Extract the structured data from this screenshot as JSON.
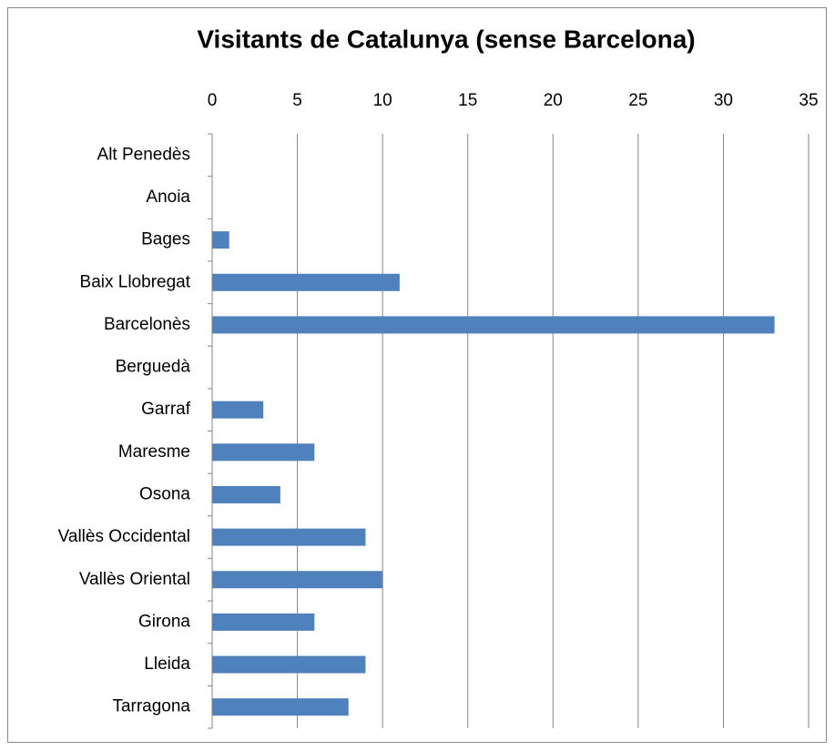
{
  "chart_data": {
    "type": "bar",
    "orientation": "horizontal",
    "title": "Visitants de Catalunya (sense Barcelona)",
    "categories": [
      "Alt Penedès",
      "Anoia",
      "Bages",
      "Baix Llobregat",
      "Barcelonès",
      "Berguedà",
      "Garraf",
      "Maresme",
      "Osona",
      "Vallès Occidental",
      "Vallès Oriental",
      "Girona",
      "Lleida",
      "Tarragona"
    ],
    "values": [
      0,
      0,
      1,
      11,
      33,
      0,
      3,
      6,
      4,
      9,
      10,
      6,
      9,
      8
    ],
    "color": "#4f81bd",
    "xlim": [
      0,
      35
    ],
    "xticks": [
      0,
      5,
      10,
      15,
      20,
      25,
      30,
      35
    ],
    "grid": true
  }
}
